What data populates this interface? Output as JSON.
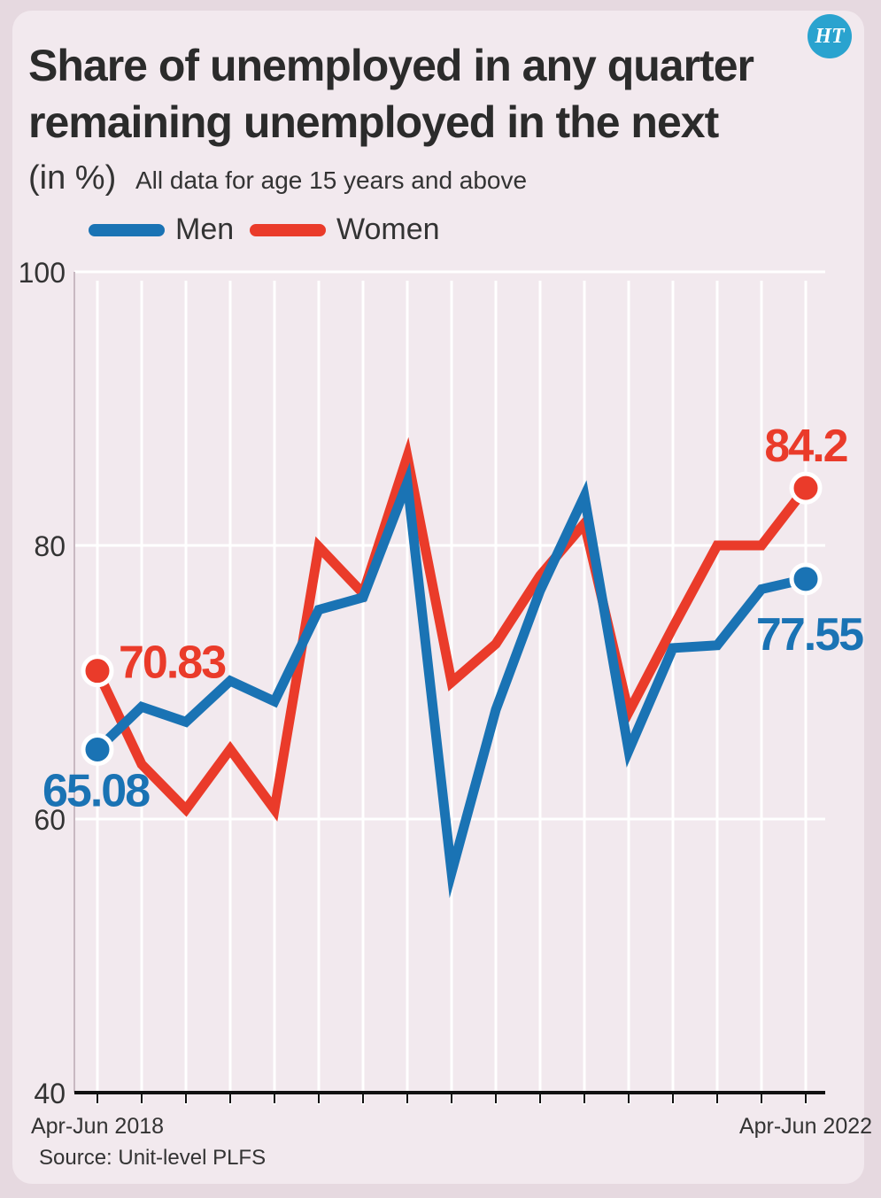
{
  "logo": {
    "text": "HT"
  },
  "header": {
    "title": "Share of unemployed in any quarter\nremaining unemployed in the next",
    "unit": "(in %)",
    "note": "All data for age 15 years and above"
  },
  "source": "Source: Unit-level PLFS",
  "colors": {
    "men": "#1a73b4",
    "women": "#ea3b2a",
    "grid": "#ffffff",
    "axis": "#111111"
  },
  "chart_data": {
    "type": "line",
    "x_tick_labels": [
      "Apr-Jun 2018",
      "Apr-Jun 2022"
    ],
    "x_tick_label_positions": [
      0,
      16
    ],
    "ylim": [
      40,
      100
    ],
    "yticks": [
      40,
      60,
      80,
      100
    ],
    "grid": true,
    "legend_position": "top-left",
    "series": [
      {
        "name": "Men",
        "color": "#1a73b4",
        "values": [
          65.08,
          68.2,
          67.1,
          70.1,
          68.6,
          75.3,
          76.2,
          84.6,
          56.1,
          68.0,
          76.7,
          83.6,
          65.0,
          72.5,
          72.7,
          76.8,
          77.55
        ],
        "labels": [
          {
            "index": 0,
            "text": "65.08"
          },
          {
            "index": 16,
            "text": "77.55"
          }
        ]
      },
      {
        "name": "Women",
        "color": "#ea3b2a",
        "values": [
          70.83,
          64.0,
          60.7,
          65.1,
          60.7,
          79.9,
          76.5,
          86.5,
          70.0,
          72.8,
          77.8,
          81.6,
          67.8,
          74.0,
          80.0,
          80.0,
          84.2
        ],
        "labels": [
          {
            "index": 0,
            "text": "70.83"
          },
          {
            "index": 16,
            "text": "84.2"
          }
        ]
      }
    ]
  }
}
